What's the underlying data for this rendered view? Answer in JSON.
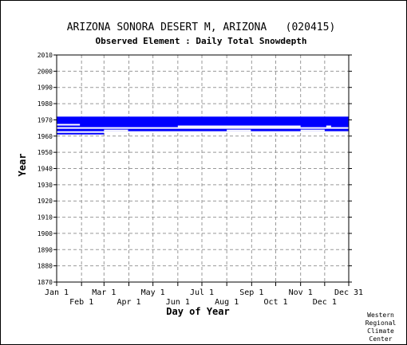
{
  "chart_data": {
    "type": "heatmap",
    "title": "ARIZONA SONORA DESERT M, ARIZONA   (020415)",
    "subtitle": "Observed Element : Daily Total Snowdepth",
    "xlabel": "Day of Year",
    "ylabel": "Year",
    "ylim": [
      1870,
      2010
    ],
    "y_ticks": [
      2010,
      2000,
      1990,
      1980,
      1970,
      1960,
      1950,
      1940,
      1930,
      1920,
      1910,
      1900,
      1890,
      1880,
      1870
    ],
    "xlim": [
      1,
      365
    ],
    "x_ticks_top": [
      {
        "label": "Jan 1",
        "day": 1
      },
      {
        "label": "Mar 1",
        "day": 60
      },
      {
        "label": "May 1",
        "day": 121
      },
      {
        "label": "Jul 1",
        "day": 182
      },
      {
        "label": "Sep 1",
        "day": 244
      },
      {
        "label": "Nov 1",
        "day": 305
      },
      {
        "label": "Dec 31",
        "day": 365
      }
    ],
    "x_ticks_bottom": [
      {
        "label": "Feb 1",
        "day": 32
      },
      {
        "label": "Apr 1",
        "day": 91
      },
      {
        "label": "Jun 1",
        "day": 152
      },
      {
        "label": "Aug 1",
        "day": 213
      },
      {
        "label": "Oct 1",
        "day": 274
      },
      {
        "label": "Dec 1",
        "day": 335
      }
    ],
    "grid": true,
    "observed_color": "#0000ff",
    "observed_periods": [
      {
        "start": 1972,
        "end": 1968,
        "day_from": 1,
        "day_to": 182
      },
      {
        "start": 1972,
        "end": 1967,
        "day_from": 182,
        "day_to": 365
      },
      {
        "start": 1968,
        "end": 1963,
        "day_from": 1,
        "day_to": 365
      },
      {
        "start": 1962,
        "end": 1961,
        "day_from": 1,
        "day_to": 60
      }
    ],
    "gaps": [
      {
        "year": 1967,
        "day_from": 1,
        "day_to": 30
      },
      {
        "year": 1966,
        "day_from": 152,
        "day_to": 305
      },
      {
        "year": 1966,
        "day_from": 337,
        "day_to": 343
      },
      {
        "year": 1965,
        "day_from": 1,
        "day_to": 365
      },
      {
        "year": 1963.5,
        "day_from": 60,
        "day_to": 90
      },
      {
        "year": 1963.5,
        "day_from": 213,
        "day_to": 243
      },
      {
        "year": 1963.5,
        "day_from": 305,
        "day_to": 335
      }
    ]
  },
  "credit": [
    "Western",
    "Regional",
    "Climate",
    "Center"
  ]
}
